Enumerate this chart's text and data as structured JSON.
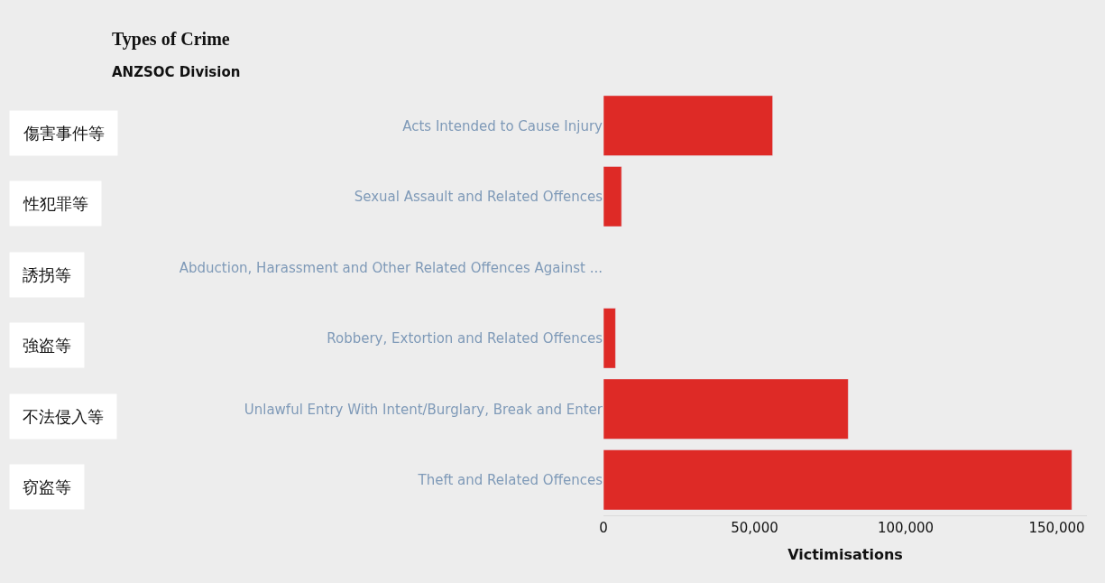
{
  "chart_data": {
    "type": "bar",
    "orientation": "horizontal",
    "title": "Types of Crime",
    "subtitle": "ANZSOC Division",
    "xlabel": "Victimisations",
    "categories": [
      "Acts Intended to Cause Injury",
      "Sexual Assault and Related Offences",
      "Abduction, Harassment and Other Related Offences Against ...",
      "Robbery, Extortion and Related Offences",
      "Unlawful Entry With Intent/Burglary, Break and Enter",
      "Theft and Related Offences"
    ],
    "values": [
      56000,
      6000,
      null,
      4000,
      81000,
      155000
    ],
    "color": "#de2a26",
    "xlim": [
      0,
      160000
    ],
    "xticks": [
      {
        "value": 0,
        "label": "0"
      },
      {
        "value": 50000,
        "label": "50,000"
      },
      {
        "value": 100000,
        "label": "100,000"
      },
      {
        "value": 150000,
        "label": "150,000"
      }
    ],
    "grid": false,
    "annotations": [
      "傷害事件等",
      "性犯罪等",
      "誘拐等",
      "強盗等",
      "不法侵入等",
      "窃盗等"
    ]
  }
}
